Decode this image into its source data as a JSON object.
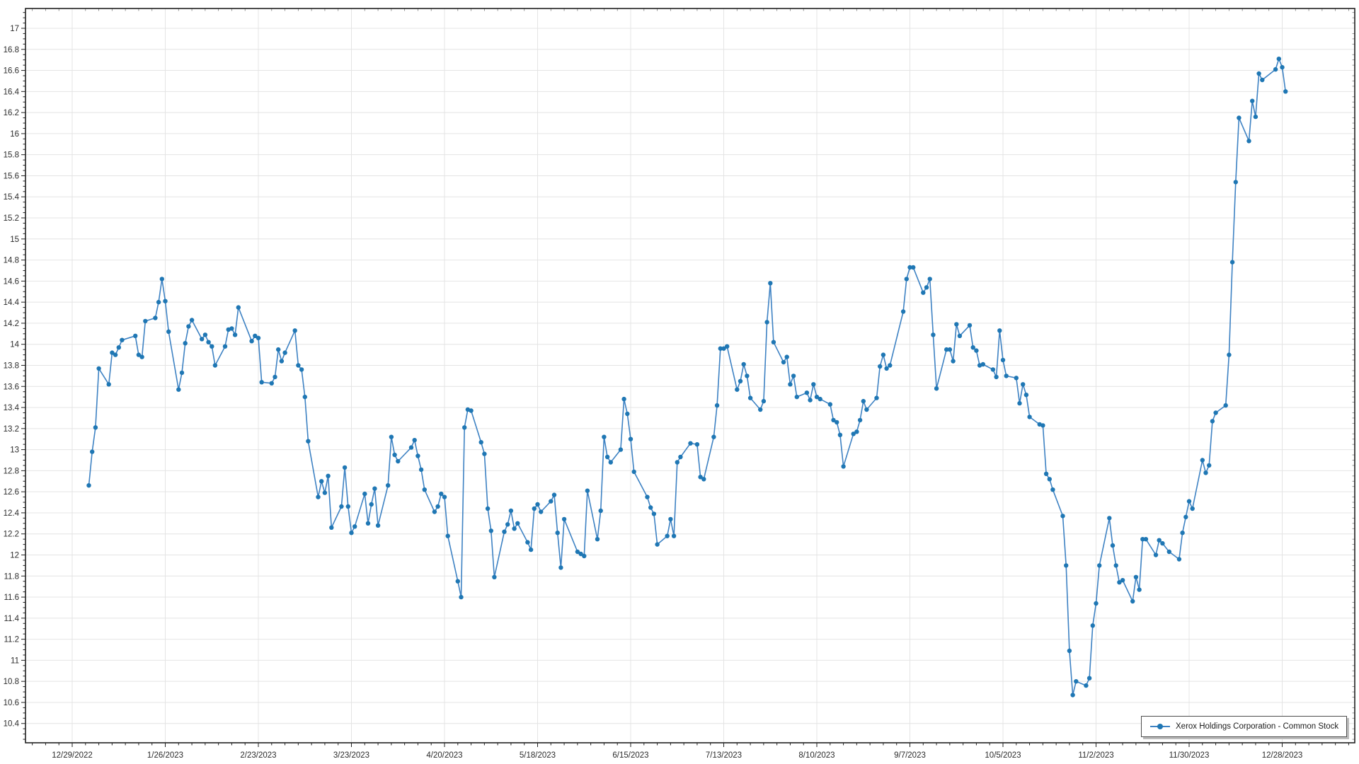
{
  "colors": {
    "series_line": "#3e82c3",
    "series_marker": "#1f77b4",
    "grid": "#e4e4e4",
    "axis": "#212121",
    "tick": "#212121",
    "label_text": "#2b2b2b",
    "legend_border": "#4d4d4d",
    "legend_shadow": "#bcbcbc",
    "background": "#ffffff"
  },
  "legend": {
    "label": "Xerox Holdings Corporation - Common Stock"
  },
  "chart_data": {
    "type": "line",
    "title": "",
    "xlabel": "",
    "ylabel": "",
    "grid": true,
    "legend_position": "bottom-right",
    "y_axis": {
      "min": 10.4,
      "max": 17,
      "major_step": 0.2,
      "minor_step": 0.05,
      "tick_labels": [
        "17",
        "16.8",
        "16.6",
        "16.4",
        "16.2",
        "16",
        "15.8",
        "15.6",
        "15.4",
        "15.2",
        "15",
        "14.8",
        "14.6",
        "14.4",
        "14.2",
        "14",
        "13.8",
        "13.6",
        "13.4",
        "13.2",
        "13",
        "12.8",
        "12.6",
        "12.4",
        "12.2",
        "12",
        "11.8",
        "11.6",
        "11.4",
        "11.2",
        "11",
        "10.8",
        "10.6",
        "10.4"
      ]
    },
    "x_axis": {
      "start_date": "12/29/2022",
      "tick_interval_days": 28,
      "minor_interval_days": 4,
      "tick_labels": [
        "12/29/2022",
        "1/26/2023",
        "2/23/2023",
        "3/23/2023",
        "4/20/2023",
        "5/18/2023",
        "6/15/2023",
        "7/13/2023",
        "8/10/2023",
        "9/7/2023",
        "10/5/2023",
        "11/2/2023",
        "11/30/2023",
        "12/28/2023"
      ]
    },
    "series": [
      {
        "name": "Xerox Holdings Corporation - Common Stock",
        "points": [
          [
            "1/3/2023",
            12.66
          ],
          [
            "1/4/2023",
            12.98
          ],
          [
            "1/5/2023",
            13.21
          ],
          [
            "1/6/2023",
            13.77
          ],
          [
            "1/9/2023",
            13.62
          ],
          [
            "1/10/2023",
            13.92
          ],
          [
            "1/11/2023",
            13.9
          ],
          [
            "1/12/2023",
            13.97
          ],
          [
            "1/13/2023",
            14.04
          ],
          [
            "1/17/2023",
            14.08
          ],
          [
            "1/18/2023",
            13.9
          ],
          [
            "1/19/2023",
            13.88
          ],
          [
            "1/20/2023",
            14.22
          ],
          [
            "1/23/2023",
            14.25
          ],
          [
            "1/24/2023",
            14.4
          ],
          [
            "1/25/2023",
            14.62
          ],
          [
            "1/26/2023",
            14.41
          ],
          [
            "1/27/2023",
            14.12
          ],
          [
            "1/30/2023",
            13.57
          ],
          [
            "1/31/2023",
            13.73
          ],
          [
            "2/1/2023",
            14.01
          ],
          [
            "2/2/2023",
            14.17
          ],
          [
            "2/3/2023",
            14.23
          ],
          [
            "2/6/2023",
            14.05
          ],
          [
            "2/7/2023",
            14.09
          ],
          [
            "2/8/2023",
            14.02
          ],
          [
            "2/9/2023",
            13.98
          ],
          [
            "2/10/2023",
            13.8
          ],
          [
            "2/13/2023",
            13.98
          ],
          [
            "2/14/2023",
            14.14
          ],
          [
            "2/15/2023",
            14.15
          ],
          [
            "2/16/2023",
            14.09
          ],
          [
            "2/17/2023",
            14.35
          ],
          [
            "2/21/2023",
            14.03
          ],
          [
            "2/22/2023",
            14.08
          ],
          [
            "2/23/2023",
            14.06
          ],
          [
            "2/24/2023",
            13.64
          ],
          [
            "2/27/2023",
            13.63
          ],
          [
            "2/28/2023",
            13.69
          ],
          [
            "3/1/2023",
            13.95
          ],
          [
            "3/2/2023",
            13.84
          ],
          [
            "3/3/2023",
            13.92
          ],
          [
            "3/6/2023",
            14.13
          ],
          [
            "3/7/2023",
            13.8
          ],
          [
            "3/8/2023",
            13.76
          ],
          [
            "3/9/2023",
            13.5
          ],
          [
            "3/10/2023",
            13.08
          ],
          [
            "3/13/2023",
            12.55
          ],
          [
            "3/14/2023",
            12.7
          ],
          [
            "3/15/2023",
            12.59
          ],
          [
            "3/16/2023",
            12.75
          ],
          [
            "3/17/2023",
            12.26
          ],
          [
            "3/20/2023",
            12.46
          ],
          [
            "3/21/2023",
            12.83
          ],
          [
            "3/22/2023",
            12.46
          ],
          [
            "3/23/2023",
            12.21
          ],
          [
            "3/24/2023",
            12.27
          ],
          [
            "3/27/2023",
            12.58
          ],
          [
            "3/28/2023",
            12.3
          ],
          [
            "3/29/2023",
            12.48
          ],
          [
            "3/30/2023",
            12.63
          ],
          [
            "3/31/2023",
            12.28
          ],
          [
            "4/3/2023",
            12.66
          ],
          [
            "4/4/2023",
            13.12
          ],
          [
            "4/5/2023",
            12.95
          ],
          [
            "4/6/2023",
            12.89
          ],
          [
            "4/10/2023",
            13.02
          ],
          [
            "4/11/2023",
            13.09
          ],
          [
            "4/12/2023",
            12.94
          ],
          [
            "4/13/2023",
            12.81
          ],
          [
            "4/14/2023",
            12.62
          ],
          [
            "4/17/2023",
            12.41
          ],
          [
            "4/18/2023",
            12.46
          ],
          [
            "4/19/2023",
            12.58
          ],
          [
            "4/20/2023",
            12.55
          ],
          [
            "4/21/2023",
            12.18
          ],
          [
            "4/24/2023",
            11.75
          ],
          [
            "4/25/2023",
            11.6
          ],
          [
            "4/26/2023",
            13.21
          ],
          [
            "4/27/2023",
            13.38
          ],
          [
            "4/28/2023",
            13.37
          ],
          [
            "5/1/2023",
            13.07
          ],
          [
            "5/2/2023",
            12.96
          ],
          [
            "5/3/2023",
            12.44
          ],
          [
            "5/4/2023",
            12.23
          ],
          [
            "5/5/2023",
            11.79
          ],
          [
            "5/8/2023",
            12.22
          ],
          [
            "5/9/2023",
            12.29
          ],
          [
            "5/10/2023",
            12.42
          ],
          [
            "5/11/2023",
            12.25
          ],
          [
            "5/12/2023",
            12.3
          ],
          [
            "5/15/2023",
            12.12
          ],
          [
            "5/16/2023",
            12.05
          ],
          [
            "5/17/2023",
            12.44
          ],
          [
            "5/18/2023",
            12.48
          ],
          [
            "5/19/2023",
            12.41
          ],
          [
            "5/22/2023",
            12.51
          ],
          [
            "5/23/2023",
            12.57
          ],
          [
            "5/24/2023",
            12.21
          ],
          [
            "5/25/2023",
            11.88
          ],
          [
            "5/26/2023",
            12.34
          ],
          [
            "5/30/2023",
            12.03
          ],
          [
            "5/31/2023",
            12.01
          ],
          [
            "6/1/2023",
            11.99
          ],
          [
            "6/2/2023",
            12.61
          ],
          [
            "6/5/2023",
            12.15
          ],
          [
            "6/6/2023",
            12.42
          ],
          [
            "6/7/2023",
            13.12
          ],
          [
            "6/8/2023",
            12.93
          ],
          [
            "6/9/2023",
            12.88
          ],
          [
            "6/12/2023",
            13.0
          ],
          [
            "6/13/2023",
            13.48
          ],
          [
            "6/14/2023",
            13.34
          ],
          [
            "6/15/2023",
            13.1
          ],
          [
            "6/16/2023",
            12.79
          ],
          [
            "6/20/2023",
            12.55
          ],
          [
            "6/21/2023",
            12.45
          ],
          [
            "6/22/2023",
            12.39
          ],
          [
            "6/23/2023",
            12.1
          ],
          [
            "6/26/2023",
            12.18
          ],
          [
            "6/27/2023",
            12.34
          ],
          [
            "6/28/2023",
            12.18
          ],
          [
            "6/29/2023",
            12.88
          ],
          [
            "6/30/2023",
            12.93
          ],
          [
            "7/3/2023",
            13.06
          ],
          [
            "7/5/2023",
            13.05
          ],
          [
            "7/6/2023",
            12.74
          ],
          [
            "7/7/2023",
            12.72
          ],
          [
            "7/10/2023",
            13.12
          ],
          [
            "7/11/2023",
            13.42
          ],
          [
            "7/12/2023",
            13.96
          ],
          [
            "7/13/2023",
            13.96
          ],
          [
            "7/14/2023",
            13.98
          ],
          [
            "7/17/2023",
            13.57
          ],
          [
            "7/18/2023",
            13.65
          ],
          [
            "7/19/2023",
            13.81
          ],
          [
            "7/20/2023",
            13.7
          ],
          [
            "7/21/2023",
            13.49
          ],
          [
            "7/24/2023",
            13.38
          ],
          [
            "7/25/2023",
            13.46
          ],
          [
            "7/26/2023",
            14.21
          ],
          [
            "7/27/2023",
            14.58
          ],
          [
            "7/28/2023",
            14.02
          ],
          [
            "7/31/2023",
            13.83
          ],
          [
            "8/1/2023",
            13.88
          ],
          [
            "8/2/2023",
            13.62
          ],
          [
            "8/3/2023",
            13.7
          ],
          [
            "8/4/2023",
            13.5
          ],
          [
            "8/7/2023",
            13.54
          ],
          [
            "8/8/2023",
            13.47
          ],
          [
            "8/9/2023",
            13.62
          ],
          [
            "8/10/2023",
            13.5
          ],
          [
            "8/11/2023",
            13.48
          ],
          [
            "8/14/2023",
            13.43
          ],
          [
            "8/15/2023",
            13.28
          ],
          [
            "8/16/2023",
            13.26
          ],
          [
            "8/17/2023",
            13.14
          ],
          [
            "8/18/2023",
            12.84
          ],
          [
            "8/21/2023",
            13.15
          ],
          [
            "8/22/2023",
            13.17
          ],
          [
            "8/23/2023",
            13.28
          ],
          [
            "8/24/2023",
            13.46
          ],
          [
            "8/25/2023",
            13.38
          ],
          [
            "8/28/2023",
            13.49
          ],
          [
            "8/29/2023",
            13.79
          ],
          [
            "8/30/2023",
            13.9
          ],
          [
            "8/31/2023",
            13.77
          ],
          [
            "9/1/2023",
            13.8
          ],
          [
            "9/5/2023",
            14.31
          ],
          [
            "9/6/2023",
            14.62
          ],
          [
            "9/7/2023",
            14.73
          ],
          [
            "9/8/2023",
            14.73
          ],
          [
            "9/11/2023",
            14.49
          ],
          [
            "9/12/2023",
            14.54
          ],
          [
            "9/13/2023",
            14.62
          ],
          [
            "9/14/2023",
            14.09
          ],
          [
            "9/15/2023",
            13.58
          ],
          [
            "9/18/2023",
            13.95
          ],
          [
            "9/19/2023",
            13.95
          ],
          [
            "9/20/2023",
            13.84
          ],
          [
            "9/21/2023",
            14.19
          ],
          [
            "9/22/2023",
            14.08
          ],
          [
            "9/25/2023",
            14.18
          ],
          [
            "9/26/2023",
            13.97
          ],
          [
            "9/27/2023",
            13.94
          ],
          [
            "9/28/2023",
            13.8
          ],
          [
            "9/29/2023",
            13.81
          ],
          [
            "10/2/2023",
            13.76
          ],
          [
            "10/3/2023",
            13.69
          ],
          [
            "10/4/2023",
            14.13
          ],
          [
            "10/5/2023",
            13.85
          ],
          [
            "10/6/2023",
            13.7
          ],
          [
            "10/9/2023",
            13.68
          ],
          [
            "10/10/2023",
            13.44
          ],
          [
            "10/11/2023",
            13.62
          ],
          [
            "10/12/2023",
            13.52
          ],
          [
            "10/13/2023",
            13.31
          ],
          [
            "10/16/2023",
            13.24
          ],
          [
            "10/17/2023",
            13.23
          ],
          [
            "10/18/2023",
            12.77
          ],
          [
            "10/19/2023",
            12.72
          ],
          [
            "10/20/2023",
            12.62
          ],
          [
            "10/23/2023",
            12.37
          ],
          [
            "10/24/2023",
            11.9
          ],
          [
            "10/25/2023",
            11.09
          ],
          [
            "10/26/2023",
            10.67
          ],
          [
            "10/27/2023",
            10.8
          ],
          [
            "10/30/2023",
            10.76
          ],
          [
            "10/31/2023",
            10.83
          ],
          [
            "11/1/2023",
            11.33
          ],
          [
            "11/2/2023",
            11.54
          ],
          [
            "11/3/2023",
            11.9
          ],
          [
            "11/6/2023",
            12.35
          ],
          [
            "11/7/2023",
            12.09
          ],
          [
            "11/8/2023",
            11.9
          ],
          [
            "11/9/2023",
            11.74
          ],
          [
            "11/10/2023",
            11.76
          ],
          [
            "11/13/2023",
            11.56
          ],
          [
            "11/14/2023",
            11.79
          ],
          [
            "11/15/2023",
            11.67
          ],
          [
            "11/16/2023",
            12.15
          ],
          [
            "11/17/2023",
            12.15
          ],
          [
            "11/20/2023",
            12.0
          ],
          [
            "11/21/2023",
            12.14
          ],
          [
            "11/22/2023",
            12.11
          ],
          [
            "11/24/2023",
            12.03
          ],
          [
            "11/27/2023",
            11.96
          ],
          [
            "11/28/2023",
            12.21
          ],
          [
            "11/29/2023",
            12.36
          ],
          [
            "11/30/2023",
            12.51
          ],
          [
            "12/1/2023",
            12.44
          ],
          [
            "12/4/2023",
            12.9
          ],
          [
            "12/5/2023",
            12.78
          ],
          [
            "12/6/2023",
            12.85
          ],
          [
            "12/7/2023",
            13.27
          ],
          [
            "12/8/2023",
            13.35
          ],
          [
            "12/11/2023",
            13.42
          ],
          [
            "12/12/2023",
            13.9
          ],
          [
            "12/13/2023",
            14.78
          ],
          [
            "12/14/2023",
            15.54
          ],
          [
            "12/15/2023",
            16.15
          ],
          [
            "12/18/2023",
            15.93
          ],
          [
            "12/19/2023",
            16.31
          ],
          [
            "12/20/2023",
            16.16
          ],
          [
            "12/21/2023",
            16.57
          ],
          [
            "12/22/2023",
            16.51
          ],
          [
            "12/26/2023",
            16.61
          ],
          [
            "12/27/2023",
            16.71
          ],
          [
            "12/28/2023",
            16.63
          ],
          [
            "12/29/2023",
            16.4
          ]
        ]
      }
    ]
  }
}
